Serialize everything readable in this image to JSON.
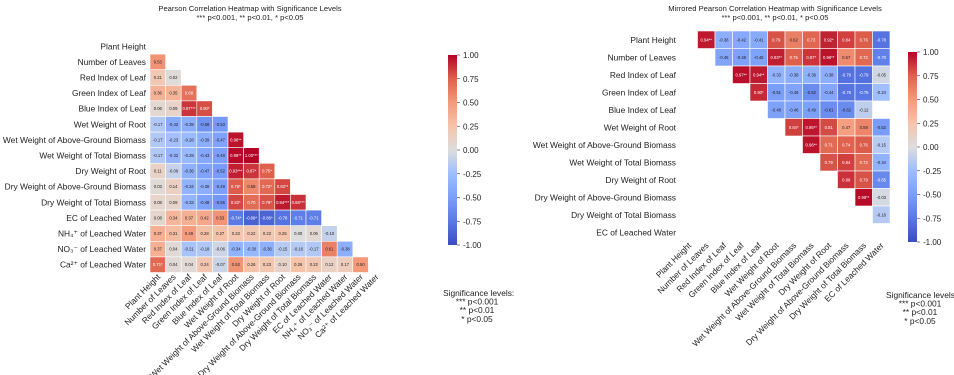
{
  "chart_data": [
    {
      "type": "heatmap",
      "title": "Pearson Correlation Heatmap with Significance Levels",
      "subtitle": "*** p<0.001, ** p<0.01, * p<0.05",
      "row_labels": [
        "Plant Height",
        "Number of Leaves",
        "Red Index of Leaf",
        "Green Index of Leaf",
        "Blue Index of Leaf",
        "Wet Weight of Root",
        "Wet Weight of Above-Ground Biomass",
        "Wet Weight of Total Biomass",
        "Dry Weight of Root",
        "Dry Weight of Above-Ground Biomass",
        "Dry Weight of Total Biomass",
        "EC of Leached Water",
        "NH4+ of Leached Water",
        "NO3- of Leached Water",
        "Ca2+ of Leached Water"
      ],
      "col_labels": [
        "Plant Height",
        "Number of Leaves",
        "Red Index of Leaf",
        "Green Index of Leaf",
        "Blue Index of Leaf",
        "Wet Weight of Root",
        "Wet Weight of Above-Ground Biomass",
        "Wet Weight of Total Biomass",
        "Dry Weight of Root",
        "Dry Weight of Above-Ground Biomass",
        "Dry Weight of Total Biomass",
        "EC of Leached Water",
        "NH4+ of Leached Water",
        "NO3- of Leached Water",
        "Ca2+ of Leached Water"
      ],
      "values": [
        [],
        [
          0.53
        ],
        [
          0.21,
          0.02
        ],
        [
          0.36,
          0.35,
          0.68
        ],
        [
          0.06,
          0.09,
          0.87,
          0.8
        ],
        [
          -0.17,
          -0.42,
          -0.39,
          -0.58,
          -0.53
        ],
        [
          -0.17,
          -0.23,
          -0.28,
          -0.39,
          -0.47,
          0.96
        ],
        [
          -0.17,
          -0.32,
          -0.29,
          -0.43,
          -0.49,
          0.99,
          1.0
        ],
        [
          0.11,
          -0.09,
          -0.36,
          -0.47,
          -0.52,
          0.93,
          0.87,
          0.75
        ],
        [
          0.03,
          0.14,
          -0.34,
          -0.38,
          -0.49,
          0.76,
          0.58,
          0.72,
          0.82
        ],
        [
          0.08,
          0.09,
          -0.33,
          -0.48,
          -0.55,
          0.82,
          0.7,
          0.79,
          0.94,
          0.88
        ],
        [
          0.08,
          0.34,
          0.37,
          0.42,
          0.53,
          -0.74,
          -0.88,
          -0.86,
          -0.78,
          -0.71,
          -0.71
        ],
        [
          0.37,
          0.31,
          0.49,
          0.28,
          0.27,
          0.23,
          0.22,
          0.22,
          0.25,
          0.0,
          0.06,
          -0.1
        ],
        [
          0.37,
          0.04,
          -0.21,
          -0.18,
          -0.06,
          -0.34,
          -0.3,
          -0.36,
          -0.15,
          -0.16,
          -0.17,
          0.61,
          -0.38
        ],
        [
          0.71,
          0.04,
          0.04,
          0.24,
          -0.07,
          0.53,
          0.26,
          0.23,
          0.1,
          0.26,
          0.22,
          0.12,
          0.17,
          0.5
        ]
      ],
      "annotations": [
        [],
        [
          "0.53"
        ],
        [
          "0.21",
          "0.02"
        ],
        [
          "0.36",
          "0.35",
          "0.68"
        ],
        [
          "0.06",
          "0.09",
          "0.87***",
          "0.80*"
        ],
        [
          "-0.17",
          "-0.42",
          "-0.39",
          "-0.58",
          "-0.53"
        ],
        [
          "-0.17",
          "-0.23",
          "-0.28",
          "-0.39",
          "-0.47",
          "0.96**"
        ],
        [
          "-0.17",
          "-0.32",
          "-0.29",
          "-0.43",
          "-0.49",
          "0.99**",
          "1.00***"
        ],
        [
          "0.11",
          "-0.09",
          "-0.36",
          "-0.47",
          "-0.52",
          "0.93***",
          "0.87*",
          "0.75*"
        ],
        [
          "0.03",
          "0.14",
          "-0.34",
          "-0.38",
          "-0.49",
          "0.76*",
          "0.58",
          "0.72*",
          "0.82**"
        ],
        [
          "0.08",
          "0.09",
          "-0.33",
          "-0.48",
          "-0.55",
          "0.82*",
          "0.70",
          "0.79*",
          "0.94***",
          "0.88***"
        ],
        [
          "0.08",
          "0.34",
          "0.37",
          "0.42",
          "0.53",
          "-0.74*",
          "-0.88*",
          "-0.86*",
          "-0.78",
          "-0.71",
          "-0.71"
        ],
        [
          "0.37",
          "0.31",
          "0.49",
          "0.28",
          "0.27",
          "0.23",
          "0.22",
          "0.22",
          "0.25",
          "0.00",
          "0.06",
          "-0.10"
        ],
        [
          "0.37",
          "0.04",
          "-0.21",
          "-0.18",
          "-0.06",
          "-0.34",
          "-0.30",
          "-0.36",
          "-0.15",
          "-0.16",
          "-0.17",
          "0.61",
          "-0.38"
        ],
        [
          "0.71*",
          "0.04",
          "0.04",
          "0.24",
          "-0.07",
          "0.53",
          "0.26",
          "0.23",
          "0.10",
          "0.26",
          "0.22",
          "0.12",
          "0.17",
          "0.50"
        ]
      ],
      "vmin": -1.0,
      "vmax": 1.0,
      "colorbar_ticks": [
        "1.00",
        "0.75",
        "0.50",
        "0.25",
        "0.00",
        "-0.25",
        "-0.50",
        "-0.75",
        "-1.00"
      ],
      "colormap": "coolwarm",
      "legend": "Significance levels:\n*** p<0.001\n** p<0.01\n* p<0.05"
    },
    {
      "type": "heatmap",
      "title": "Mirrored Pearson Correlation Heatmap with Significance Levels",
      "subtitle": "*** p<0.001, ** p<0.01, * p<0.05",
      "row_labels": [
        "Plant Height",
        "Number of Leaves",
        "Red Index of Leaf",
        "Green Index of Leaf",
        "Blue Index of Leaf",
        "Wet Weight of Root",
        "Wet Weight of Above-Ground Biomass",
        "Wet Weight of Total Biomass",
        "Dry Weight of Root",
        "Dry Weight of Above-Ground Biomass",
        "Dry Weight of Total Biomass",
        "EC of Leached Water"
      ],
      "col_labels": [
        "Plant Height",
        "Number of Leaves",
        "Red Index of Leaf",
        "Green Index of Leaf",
        "Blue Index of Leaf",
        "Wet Weight of Root",
        "Wet Weight of Above-Ground Biomass",
        "Wet Weight of Total Biomass",
        "Dry Weight of Root",
        "Dry Weight of Above-Ground Biomass",
        "Dry Weight of Total Biomass",
        "EC of Leached Water"
      ],
      "values": [
        [
          0.94,
          -0.38,
          -0.42,
          -0.41,
          0.79,
          0.62,
          0.73,
          0.92,
          0.84,
          0.76,
          -0.78
        ],
        [
          -0.45,
          -0.48,
          -0.48,
          0.93,
          0.75,
          0.87,
          0.96,
          0.57,
          0.72,
          -0.7
        ],
        [
          0.97,
          0.94,
          -0.33,
          -0.38,
          -0.36,
          -0.38,
          -0.79,
          -0.79,
          -0.05
        ],
        [
          0.9,
          -0.51,
          -0.46,
          -0.62,
          -0.44,
          -0.78,
          -0.75,
          -0.24
        ],
        [
          -0.48,
          -0.46,
          -0.49,
          -0.61,
          -0.62,
          -0.12
        ],
        [
          0.84,
          0.95,
          0.81,
          0.47,
          0.59,
          -0.52
        ],
        [
          0.96,
          0.71,
          0.74,
          0.76,
          -0.15
        ],
        [
          0.79,
          0.84,
          0.72,
          -0.34
        ],
        [
          0.88,
          0.79,
          -0.65
        ],
        [
          0.98,
          -0.03
        ],
        [
          -0.16
        ],
        []
      ],
      "annotations": [
        [
          "0.94**",
          "-0.38",
          "-0.42",
          "-0.41",
          "0.79",
          "0.62",
          "0.73",
          "0.92*",
          "0.84",
          "0.76",
          "-0.78"
        ],
        [
          "-0.45",
          "-0.48",
          "-0.48",
          "0.93**",
          "0.75",
          "0.87*",
          "0.96**",
          "0.57",
          "0.72",
          "-0.70"
        ],
        [
          "0.97**",
          "0.94**",
          "-0.33",
          "-0.38",
          "-0.36",
          "-0.38",
          "-0.79",
          "-0.79",
          "-0.05"
        ],
        [
          "0.90*",
          "-0.51",
          "-0.46",
          "-0.62",
          "-0.44",
          "-0.78",
          "-0.75",
          "-0.24"
        ],
        [
          "-0.48",
          "-0.46",
          "-0.49",
          "-0.61",
          "-0.62",
          "-0.12"
        ],
        [
          "0.84*",
          "0.95**",
          "0.81",
          "0.47",
          "0.59",
          "-0.52"
        ],
        [
          "0.96**",
          "0.71",
          "0.74",
          "0.76",
          "-0.15"
        ],
        [
          "0.79",
          "0.84",
          "0.72",
          "-0.34"
        ],
        [
          "0.88",
          "0.79",
          "-0.65"
        ],
        [
          "0.98**",
          "-0.03"
        ],
        [
          "-0.16"
        ],
        []
      ],
      "vmin": -1.0,
      "vmax": 1.0,
      "colorbar_ticks": [
        "1.00",
        "0.75",
        "0.50",
        "0.25",
        "0.00",
        "-0.25",
        "-0.50",
        "-0.75",
        "-1.00"
      ],
      "colormap": "coolwarm",
      "legend": "Significance levels:\n*** p<0.001\n** p<0.01\n* p<0.05"
    }
  ]
}
